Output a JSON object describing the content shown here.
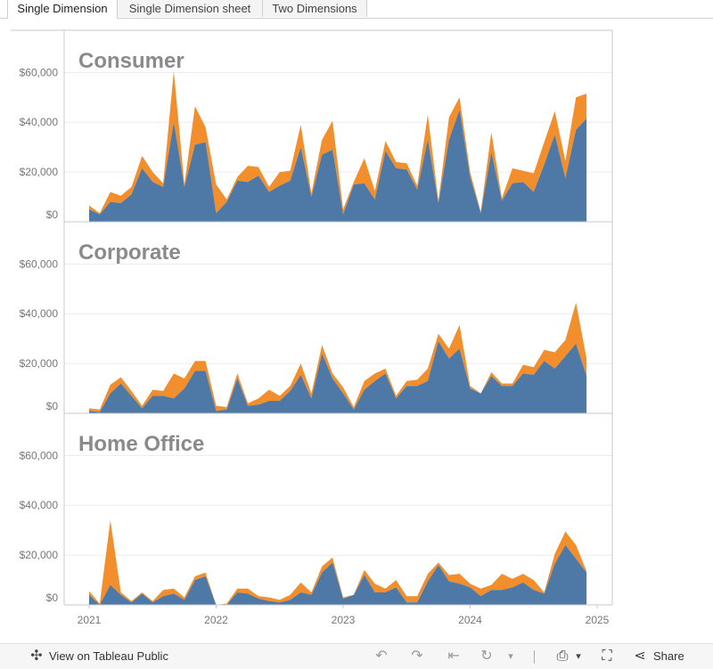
{
  "tabs": [
    {
      "label": "Single Dimension",
      "active": true
    },
    {
      "label": "Single Dimension sheet",
      "active": false
    },
    {
      "label": "Two Dimensions",
      "active": false
    }
  ],
  "toolbar": {
    "view_label": "View on Tableau Public",
    "share_label": "Share"
  },
  "colors": {
    "primary_series": "#4e79a7",
    "secondary_series": "#f28e2b",
    "panel_title": "#8a8a8a",
    "axis_text": "#777777"
  },
  "chart_data": {
    "type": "area",
    "stacked": true,
    "x_tick_labels": [
      "2021",
      "2022",
      "2023",
      "2024",
      "2025"
    ],
    "y_tick_labels": [
      "$0",
      "$20,000",
      "$40,000",
      "$60,000"
    ],
    "ylim": [
      0,
      75000
    ],
    "grid": true,
    "x_dates": [
      "2021-01",
      "2021-02",
      "2021-03",
      "2021-04",
      "2021-05",
      "2021-06",
      "2021-07",
      "2021-08",
      "2021-09",
      "2021-10",
      "2021-11",
      "2021-12",
      "2022-01",
      "2022-02",
      "2022-03",
      "2022-04",
      "2022-05",
      "2022-06",
      "2022-07",
      "2022-08",
      "2022-09",
      "2022-10",
      "2022-11",
      "2022-12",
      "2023-01",
      "2023-02",
      "2023-03",
      "2023-04",
      "2023-05",
      "2023-06",
      "2023-07",
      "2023-08",
      "2023-09",
      "2023-10",
      "2023-11",
      "2023-12",
      "2024-01",
      "2024-02",
      "2024-03",
      "2024-04",
      "2024-05",
      "2024-06",
      "2024-07",
      "2024-08",
      "2024-09",
      "2024-10",
      "2024-11",
      "2024-12"
    ],
    "panels": [
      {
        "title": "Consumer",
        "series": [
          {
            "values": [
              5000,
              3000,
              8000,
              7500,
              11000,
              21500,
              16000,
              14000,
              40000,
              14000,
              31000,
              32000,
              3500,
              8000,
              16500,
              16000,
              18500,
              12000,
              14500,
              16500,
              30000,
              10000,
              27000,
              29000,
              3000,
              15000,
              15500,
              9000,
              28500,
              21500,
              21000,
              13000,
              33000,
              7500,
              33000,
              45000,
              18000,
              3500,
              28000,
              8500,
              15500,
              16000,
              12000,
              23000,
              35000,
              17500,
              37000,
              41500
            ]
          },
          {
            "values": [
              1500,
              500,
              4000,
              3000,
              3000,
              5000,
              4000,
              1500,
              20500,
              1000,
              15500,
              6000,
              11500,
              1000,
              1500,
              6500,
              3500,
              2000,
              5500,
              4000,
              9000,
              1500,
              6000,
              11500,
              2000,
              1000,
              10000,
              3500,
              4000,
              2500,
              2500,
              1500,
              10000,
              1000,
              9000,
              5000,
              2000,
              500,
              8000,
              1000,
              6000,
              4500,
              7500,
              9000,
              9500,
              7000,
              13000,
              10000
            ]
          }
        ]
      },
      {
        "title": "Corporate",
        "series": [
          {
            "values": [
              1000,
              500,
              8000,
              12000,
              7000,
              2000,
              7000,
              7000,
              6000,
              10000,
              17000,
              17000,
              1000,
              1500,
              14000,
              3000,
              3500,
              5000,
              5000,
              9000,
              15500,
              6000,
              24000,
              14000,
              8000,
              1500,
              9500,
              13000,
              16000,
              6000,
              11000,
              11000,
              13000,
              29000,
              22000,
              26000,
              10000,
              8000,
              15000,
              11000,
              11000,
              16000,
              15500,
              21000,
              18000,
              23000,
              28000,
              15000
            ]
          },
          {
            "values": [
              1000,
              1000,
              3500,
              2500,
              2000,
              1000,
              2500,
              2000,
              10000,
              4000,
              4000,
              4000,
              2000,
              1000,
              2000,
              1000,
              2500,
              4500,
              2000,
              2000,
              4500,
              2000,
              3500,
              2000,
              2500,
              1000,
              3500,
              3000,
              2000,
              1000,
              2000,
              2500,
              5000,
              3000,
              4000,
              9500,
              1000,
              0,
              1500,
              1000,
              1000,
              3500,
              3000,
              4500,
              6500,
              6500,
              16500,
              7000
            ]
          }
        ]
      },
      {
        "title": "Home Office",
        "series": [
          {
            "values": [
              4000,
              0,
              8000,
              4000,
              1000,
              4500,
              1000,
              3500,
              4500,
              2000,
              10000,
              11500,
              0,
              0,
              5000,
              4500,
              2500,
              1500,
              1000,
              2000,
              5000,
              4000,
              13000,
              17000,
              2500,
              4000,
              12000,
              5000,
              5000,
              7000,
              1000,
              1000,
              9500,
              16000,
              9500,
              8500,
              7000,
              3500,
              6000,
              6000,
              7000,
              9000,
              6000,
              4500,
              16500,
              24000,
              18500,
              13000
            ]
          },
          {
            "values": [
              1500,
              500,
              26000,
              1000,
              500,
              500,
              500,
              2500,
              2000,
              1000,
              1500,
              1500,
              0,
              500,
              1500,
              2000,
              1000,
              1500,
              1000,
              2000,
              4000,
              1000,
              2500,
              2000,
              500,
              0,
              2000,
              3500,
              1500,
              3000,
              2500,
              2500,
              3000,
              1000,
              2500,
              4000,
              1500,
              3000,
              2000,
              6500,
              3500,
              3500,
              4000,
              500,
              4000,
              5500,
              5500,
              500
            ]
          }
        ]
      }
    ]
  }
}
